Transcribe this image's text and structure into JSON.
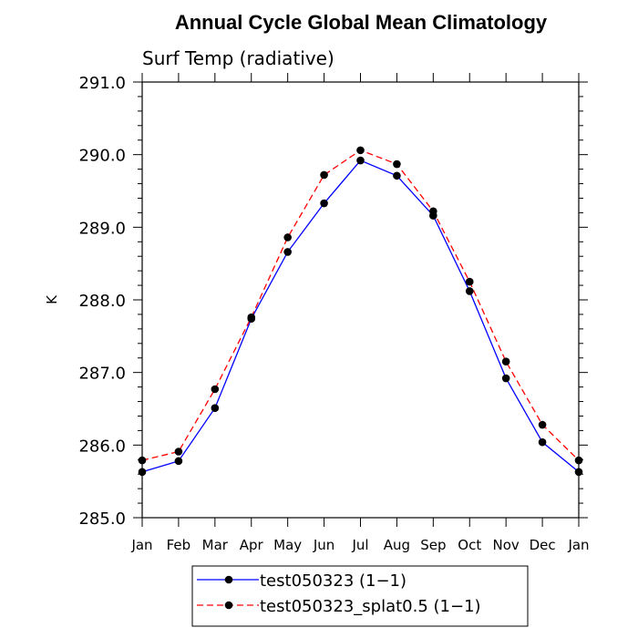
{
  "chart_data": {
    "type": "line",
    "title": "Annual Cycle Global Mean Climatology",
    "subtitle": "Surf Temp (radiative)",
    "ylabel": "K",
    "xlabel": "",
    "categories": [
      "Jan",
      "Feb",
      "Mar",
      "Apr",
      "May",
      "Jun",
      "Jul",
      "Aug",
      "Sep",
      "Oct",
      "Nov",
      "Dec",
      "Jan"
    ],
    "ylim": [
      285.0,
      291.0
    ],
    "yticks": [
      "285.0",
      "286.0",
      "287.0",
      "288.0",
      "289.0",
      "290.0",
      "291.0"
    ],
    "grid": false,
    "legend_position": "bottom",
    "series": [
      {
        "name": "test050323 (1−1)",
        "color": "#0000ff",
        "line_style": "solid",
        "marker": "filled-circle",
        "values": [
          285.63,
          285.78,
          286.51,
          287.74,
          288.66,
          289.33,
          289.92,
          289.71,
          289.16,
          288.12,
          286.92,
          286.04,
          285.63
        ]
      },
      {
        "name": "test050323_splat0.5 (1−1)",
        "color": "#ff0000",
        "line_style": "dashed",
        "marker": "filled-circle",
        "values": [
          285.79,
          285.91,
          286.77,
          287.76,
          288.86,
          289.72,
          290.06,
          289.87,
          289.22,
          288.25,
          287.15,
          286.28,
          285.79
        ]
      }
    ]
  }
}
